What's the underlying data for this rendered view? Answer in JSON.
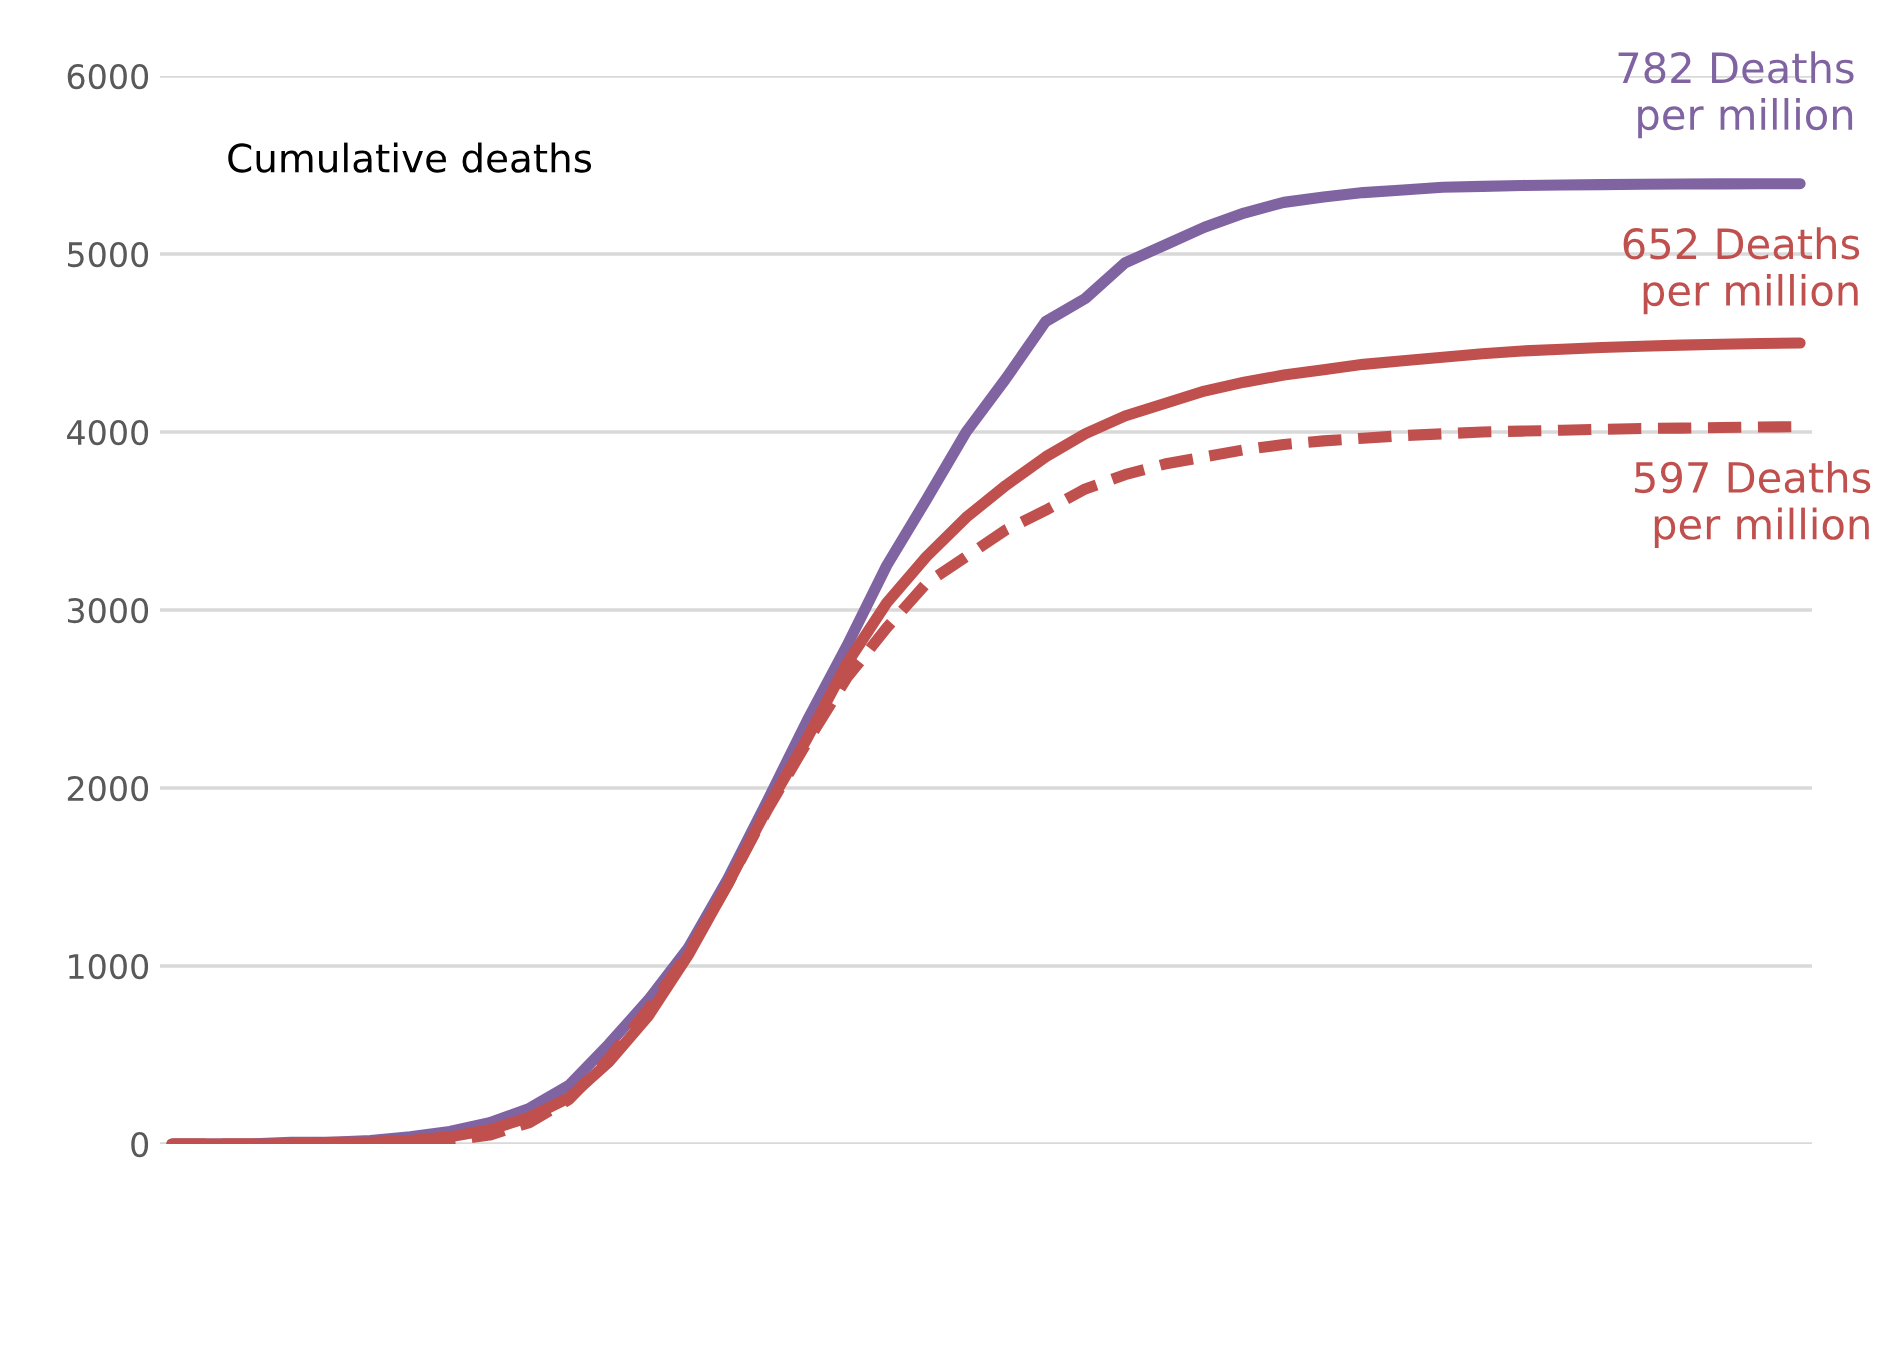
{
  "chart_data": {
    "type": "line",
    "title": "Cumulative deaths",
    "categories": [
      null,
      null,
      null,
      null,
      null,
      null,
      null,
      null,
      null,
      null,
      null,
      null,
      null,
      null,
      null,
      null,
      null,
      null,
      null,
      null,
      null,
      null,
      null,
      null,
      null,
      null,
      null,
      null,
      null,
      null,
      null,
      null,
      null,
      null,
      null,
      null,
      null,
      null,
      null,
      null,
      null,
      null
    ],
    "series": [
      {
        "color": "#8064a2",
        "line_style": "solid",
        "values": [
          0,
          0,
          0,
          10,
          10,
          20,
          40,
          70,
          120,
          200,
          330,
          560,
          810,
          1100,
          1490,
          1930,
          2380,
          2800,
          3250,
          3620,
          4000,
          4300,
          4620,
          4750,
          4950,
          5050,
          5150,
          5230,
          5290,
          5320,
          5345,
          5360,
          5375,
          5380,
          5385,
          5388,
          5390,
          5392,
          5393,
          5394,
          5395,
          5395
        ]
      },
      {
        "color": "#c0504d",
        "line_style": "solid",
        "values": [
          0,
          0,
          0,
          0,
          10,
          10,
          20,
          40,
          80,
          150,
          260,
          460,
          720,
          1060,
          1460,
          1890,
          2280,
          2700,
          3040,
          3300,
          3520,
          3700,
          3860,
          3990,
          4090,
          4160,
          4230,
          4280,
          4320,
          4350,
          4380,
          4400,
          4420,
          4440,
          4455,
          4465,
          4475,
          4482,
          4488,
          4493,
          4497,
          4500
        ]
      },
      {
        "color": "#c0504d",
        "line_style": "dashed",
        "values": [
          0,
          0,
          0,
          0,
          0,
          0,
          10,
          20,
          50,
          120,
          250,
          480,
          760,
          1070,
          1460,
          1880,
          2260,
          2620,
          2900,
          3150,
          3300,
          3450,
          3560,
          3680,
          3760,
          3820,
          3860,
          3900,
          3930,
          3950,
          3965,
          3980,
          3990,
          4000,
          4005,
          4010,
          4015,
          4020,
          4022,
          4025,
          4028,
          4030
        ]
      }
    ],
    "annotations": [
      "782 Deaths\nper million",
      "652 Deaths\nper million",
      "597 Deaths\nper million"
    ],
    "ylim": [
      0,
      6000
    ],
    "yticks": [
      0,
      1000,
      2000,
      3000,
      4000,
      5000,
      6000
    ],
    "grid": "y",
    "legend": false
  }
}
